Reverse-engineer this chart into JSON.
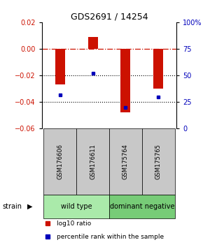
{
  "title": "GDS2691 / 14254",
  "samples": [
    "GSM176606",
    "GSM176611",
    "GSM175764",
    "GSM175765"
  ],
  "log10_ratio": [
    -0.027,
    0.009,
    -0.048,
    -0.03
  ],
  "percentile_rank": [
    0.32,
    0.52,
    0.2,
    0.3
  ],
  "ylim_left": [
    -0.06,
    0.02
  ],
  "ylim_right": [
    0,
    1.0
  ],
  "yticks_left": [
    -0.06,
    -0.04,
    -0.02,
    0.0,
    0.02
  ],
  "yticks_right": [
    0,
    0.25,
    0.5,
    0.75,
    1.0
  ],
  "ytick_labels_right": [
    "0",
    "25",
    "50",
    "75",
    "100%"
  ],
  "groups": [
    {
      "label": "wild type",
      "indices": [
        0,
        1
      ],
      "color": "#AAEAAA"
    },
    {
      "label": "dominant negative",
      "indices": [
        2,
        3
      ],
      "color": "#77CC77"
    }
  ],
  "bar_color": "#CC1100",
  "dot_color": "#0000BB",
  "hline_color": "#CC1100",
  "dotted_line_color": "#000000",
  "bg_color": "#FFFFFF",
  "label_color_left": "#CC1100",
  "label_color_right": "#0000BB",
  "strain_label": "strain",
  "legend_ratio_label": "log10 ratio",
  "legend_pct_label": "percentile rank within the sample",
  "group_label_box_color": "#C8C8C8",
  "tick_label_size": 7,
  "bar_width": 0.3
}
